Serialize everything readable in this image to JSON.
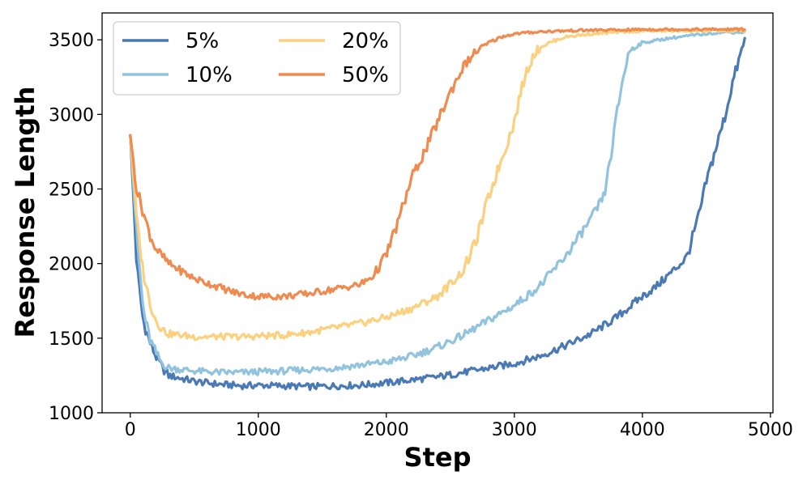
{
  "chart_data": {
    "type": "line",
    "title": "",
    "xlabel": "Step",
    "ylabel": "Response Length",
    "xlim": [
      -220,
      5020
    ],
    "ylim": [
      1000,
      3680
    ],
    "xticks": [
      0,
      1000,
      2000,
      3000,
      4000,
      5000
    ],
    "yticks": [
      1000,
      1500,
      2000,
      2500,
      3000,
      3500
    ],
    "grid": false,
    "legend": {
      "placement": "top-left",
      "columns": 2
    },
    "series": [
      {
        "name": "5%",
        "color": "#4a7ab5",
        "x": [
          0,
          50,
          100,
          150,
          200,
          250,
          300,
          400,
          500,
          600,
          700,
          800,
          900,
          1000,
          1200,
          1400,
          1600,
          1800,
          2000,
          2200,
          2400,
          2600,
          2800,
          3000,
          3200,
          3400,
          3600,
          3800,
          4000,
          4100,
          4200,
          4300,
          4350,
          4400,
          4450,
          4500,
          4550,
          4600,
          4650,
          4700,
          4750,
          4800
        ],
        "y": [
          2860,
          2000,
          1620,
          1480,
          1380,
          1300,
          1250,
          1230,
          1210,
          1200,
          1190,
          1185,
          1180,
          1185,
          1180,
          1175,
          1180,
          1185,
          1200,
          1220,
          1240,
          1270,
          1300,
          1330,
          1380,
          1450,
          1530,
          1640,
          1780,
          1840,
          1920,
          2000,
          2050,
          2200,
          2350,
          2550,
          2700,
          2850,
          3000,
          3200,
          3350,
          3500
        ]
      },
      {
        "name": "10%",
        "color": "#91c3de",
        "x": [
          0,
          50,
          100,
          150,
          200,
          250,
          300,
          400,
          500,
          600,
          700,
          800,
          900,
          1000,
          1200,
          1400,
          1600,
          1800,
          2000,
          2200,
          2400,
          2600,
          2800,
          3000,
          3200,
          3400,
          3600,
          3700,
          3750,
          3800,
          3850,
          3900,
          4000,
          4200,
          4400,
          4600,
          4800
        ],
        "y": [
          2860,
          2200,
          1700,
          1500,
          1400,
          1330,
          1300,
          1290,
          1280,
          1275,
          1270,
          1270,
          1270,
          1275,
          1280,
          1290,
          1300,
          1320,
          1340,
          1380,
          1440,
          1520,
          1620,
          1720,
          1850,
          2050,
          2300,
          2450,
          2700,
          3000,
          3250,
          3430,
          3480,
          3510,
          3530,
          3550,
          3550
        ]
      },
      {
        "name": "20%",
        "color": "#fbd07e",
        "x": [
          0,
          50,
          100,
          150,
          200,
          250,
          300,
          400,
          500,
          600,
          700,
          800,
          900,
          1000,
          1200,
          1400,
          1600,
          1800,
          2000,
          2200,
          2400,
          2600,
          2700,
          2800,
          2900,
          3000,
          3050,
          3100,
          3150,
          3200,
          3300,
          3400,
          3600,
          3800,
          4000,
          4200,
          4400,
          4600,
          4800
        ],
        "y": [
          2860,
          2300,
          1950,
          1750,
          1620,
          1560,
          1530,
          1520,
          1510,
          1510,
          1510,
          1510,
          1510,
          1515,
          1520,
          1540,
          1570,
          1600,
          1640,
          1700,
          1780,
          1950,
          2150,
          2450,
          2700,
          2950,
          3150,
          3300,
          3400,
          3450,
          3490,
          3520,
          3540,
          3550,
          3560,
          3560,
          3560,
          3560,
          3560
        ]
      },
      {
        "name": "50%",
        "color": "#f08a4e",
        "x": [
          0,
          50,
          100,
          150,
          200,
          250,
          300,
          400,
          500,
          600,
          700,
          800,
          900,
          1000,
          1200,
          1400,
          1600,
          1800,
          1900,
          2000,
          2100,
          2200,
          2300,
          2400,
          2500,
          2600,
          2700,
          2800,
          2900,
          3000,
          3200,
          3400,
          3600,
          3800,
          4000,
          4200,
          4400,
          4600,
          4800
        ],
        "y": [
          2860,
          2500,
          2350,
          2200,
          2100,
          2050,
          2000,
          1950,
          1900,
          1870,
          1840,
          1810,
          1790,
          1780,
          1780,
          1800,
          1830,
          1860,
          1920,
          2060,
          2300,
          2580,
          2750,
          2950,
          3150,
          3320,
          3420,
          3480,
          3520,
          3540,
          3555,
          3560,
          3565,
          3565,
          3570,
          3570,
          3570,
          3570,
          3570
        ]
      }
    ]
  }
}
